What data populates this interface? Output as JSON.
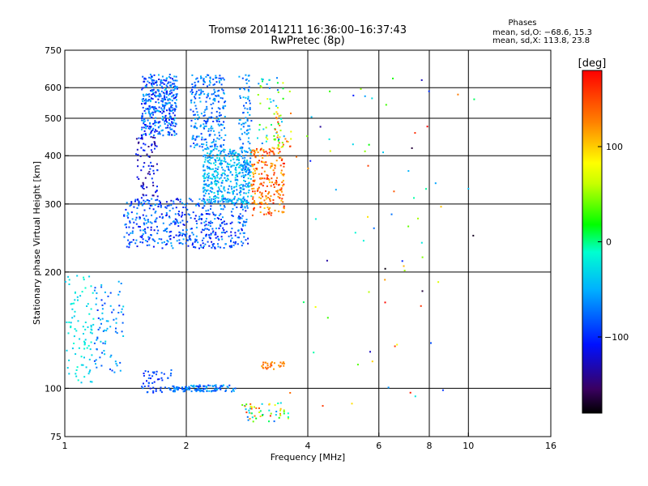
{
  "chart_data": {
    "type": "scatter",
    "title": "Tromsø 20141211 16:36:00–16:37:43",
    "subtitle": "RwPretec (8p)",
    "xlabel": "Frequency [MHz]",
    "ylabel": "Stationary phase Virtual Height [km]",
    "x_scale": "log",
    "y_scale": "log",
    "xlim": [
      1,
      16
    ],
    "ylim": [
      75,
      750
    ],
    "x_ticks": [
      "1",
      "2",
      "4",
      "6",
      "8",
      "10",
      "16"
    ],
    "y_ticks": [
      "75",
      "100",
      "200",
      "300",
      "400",
      "500",
      "600",
      "750"
    ],
    "x_gridlines": [
      2,
      4,
      6,
      8,
      10
    ],
    "y_gridlines": [
      100,
      200,
      300,
      400,
      500,
      600
    ],
    "grid": true,
    "stats_header": "Phases",
    "stats_o": "mean, sd,O: −68.6, 15.3",
    "stats_x": "mean, sd,X: 113.8, 23.8",
    "colorbar": {
      "label": "[deg]",
      "range": [
        -180,
        180
      ],
      "ticks": [
        "100",
        "0",
        "−100"
      ],
      "tick_values": [
        100,
        0,
        -100
      ]
    },
    "point_groups": [
      {
        "f": [
          1.55,
          1.9
        ],
        "h": [
          450,
          650
        ],
        "phase": [
          -120,
          -40
        ],
        "n": 380
      },
      {
        "f": [
          2.05,
          2.5
        ],
        "h": [
          420,
          650
        ],
        "phase": [
          -100,
          -40
        ],
        "n": 240
      },
      {
        "f": [
          2.7,
          2.9
        ],
        "h": [
          360,
          650
        ],
        "phase": [
          -90,
          -40
        ],
        "n": 90
      },
      {
        "f": [
          3.0,
          3.5
        ],
        "h": [
          430,
          640
        ],
        "phase": [
          -80,
          80
        ],
        "n": 50
      },
      {
        "f": [
          1.5,
          1.7
        ],
        "h": [
          300,
          450
        ],
        "phase": [
          -150,
          -90
        ],
        "n": 80
      },
      {
        "f": [
          1.4,
          2.85
        ],
        "h": [
          230,
          310
        ],
        "phase": [
          -120,
          -50
        ],
        "n": 500
      },
      {
        "f": [
          2.2,
          2.9
        ],
        "h": [
          300,
          420
        ],
        "phase": [
          -80,
          -20
        ],
        "n": 420
      },
      {
        "f": [
          2.9,
          3.5
        ],
        "h": [
          280,
          420
        ],
        "phase": [
          100,
          170
        ],
        "n": 230
      },
      {
        "f": [
          3.3,
          3.65
        ],
        "h": [
          420,
          520
        ],
        "phase": [
          20,
          160
        ],
        "n": 30
      },
      {
        "f": [
          1.0,
          1.18
        ],
        "h": [
          103,
          200
        ],
        "phase": [
          -40,
          -10
        ],
        "n": 90
      },
      {
        "f": [
          1.18,
          1.4
        ],
        "h": [
          110,
          190
        ],
        "phase": [
          -100,
          -30
        ],
        "n": 80
      },
      {
        "f": [
          1.55,
          1.85
        ],
        "h": [
          97,
          112
        ],
        "phase": [
          -110,
          -70
        ],
        "n": 50
      },
      {
        "f": [
          1.85,
          2.65
        ],
        "h": [
          98,
          102
        ],
        "phase": [
          -100,
          -40
        ],
        "n": 110
      },
      {
        "f": [
          3.05,
          3.5
        ],
        "h": [
          112,
          117
        ],
        "phase": [
          110,
          150
        ],
        "n": 30
      },
      {
        "f": [
          2.75,
          3.6
        ],
        "h": [
          82,
          92
        ],
        "phase": [
          -80,
          160
        ],
        "n": 55
      },
      {
        "f": [
          3.5,
          10.5
        ],
        "h": [
          88,
          640
        ],
        "phase": [
          -180,
          180
        ],
        "n": 75
      }
    ]
  }
}
